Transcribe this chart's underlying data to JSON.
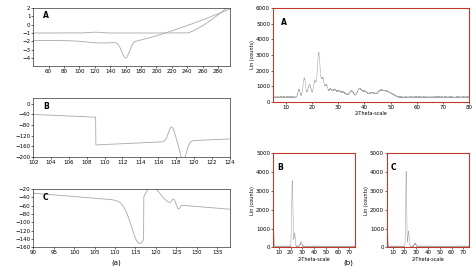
{
  "fig_label_a": "(a)",
  "fig_label_b": "(b)",
  "line_color": "#a8a8a8",
  "border_color": "#c0392b",
  "background_color": "#ffffff",
  "tick_labelsize": 4,
  "dsc_a_xlabel_ticks": [
    60,
    80,
    100,
    120,
    140,
    160,
    180,
    200,
    220,
    240,
    260,
    280
  ],
  "dsc_a_yticks": [
    -4,
    -3,
    -2,
    -1,
    0,
    1,
    2
  ],
  "dsc_b_xlabel_ticks": [
    102,
    104,
    106,
    108,
    110,
    112,
    114,
    116,
    118,
    120,
    122,
    124
  ],
  "dsc_b_yticks": [
    -200,
    -160,
    -120,
    -80,
    -40,
    0
  ],
  "dsc_c_xlabel_ticks": [
    90,
    95,
    100,
    105,
    110,
    115,
    120,
    125,
    130,
    135
  ],
  "dsc_c_yticks": [
    -160,
    -140,
    -120,
    -100,
    -80,
    -60,
    -40,
    -20
  ],
  "xrd_a_xticks": [
    10,
    20,
    30,
    40,
    50,
    60,
    70,
    80
  ],
  "xrd_a_yticks": [
    0,
    1000,
    2000,
    3000,
    4000,
    5000,
    6000
  ],
  "xrd_bc_xticks": [
    10,
    20,
    30,
    40,
    50,
    60,
    70
  ],
  "xrd_bc_yticks": [
    0,
    1000,
    2000,
    3000,
    4000,
    5000
  ]
}
